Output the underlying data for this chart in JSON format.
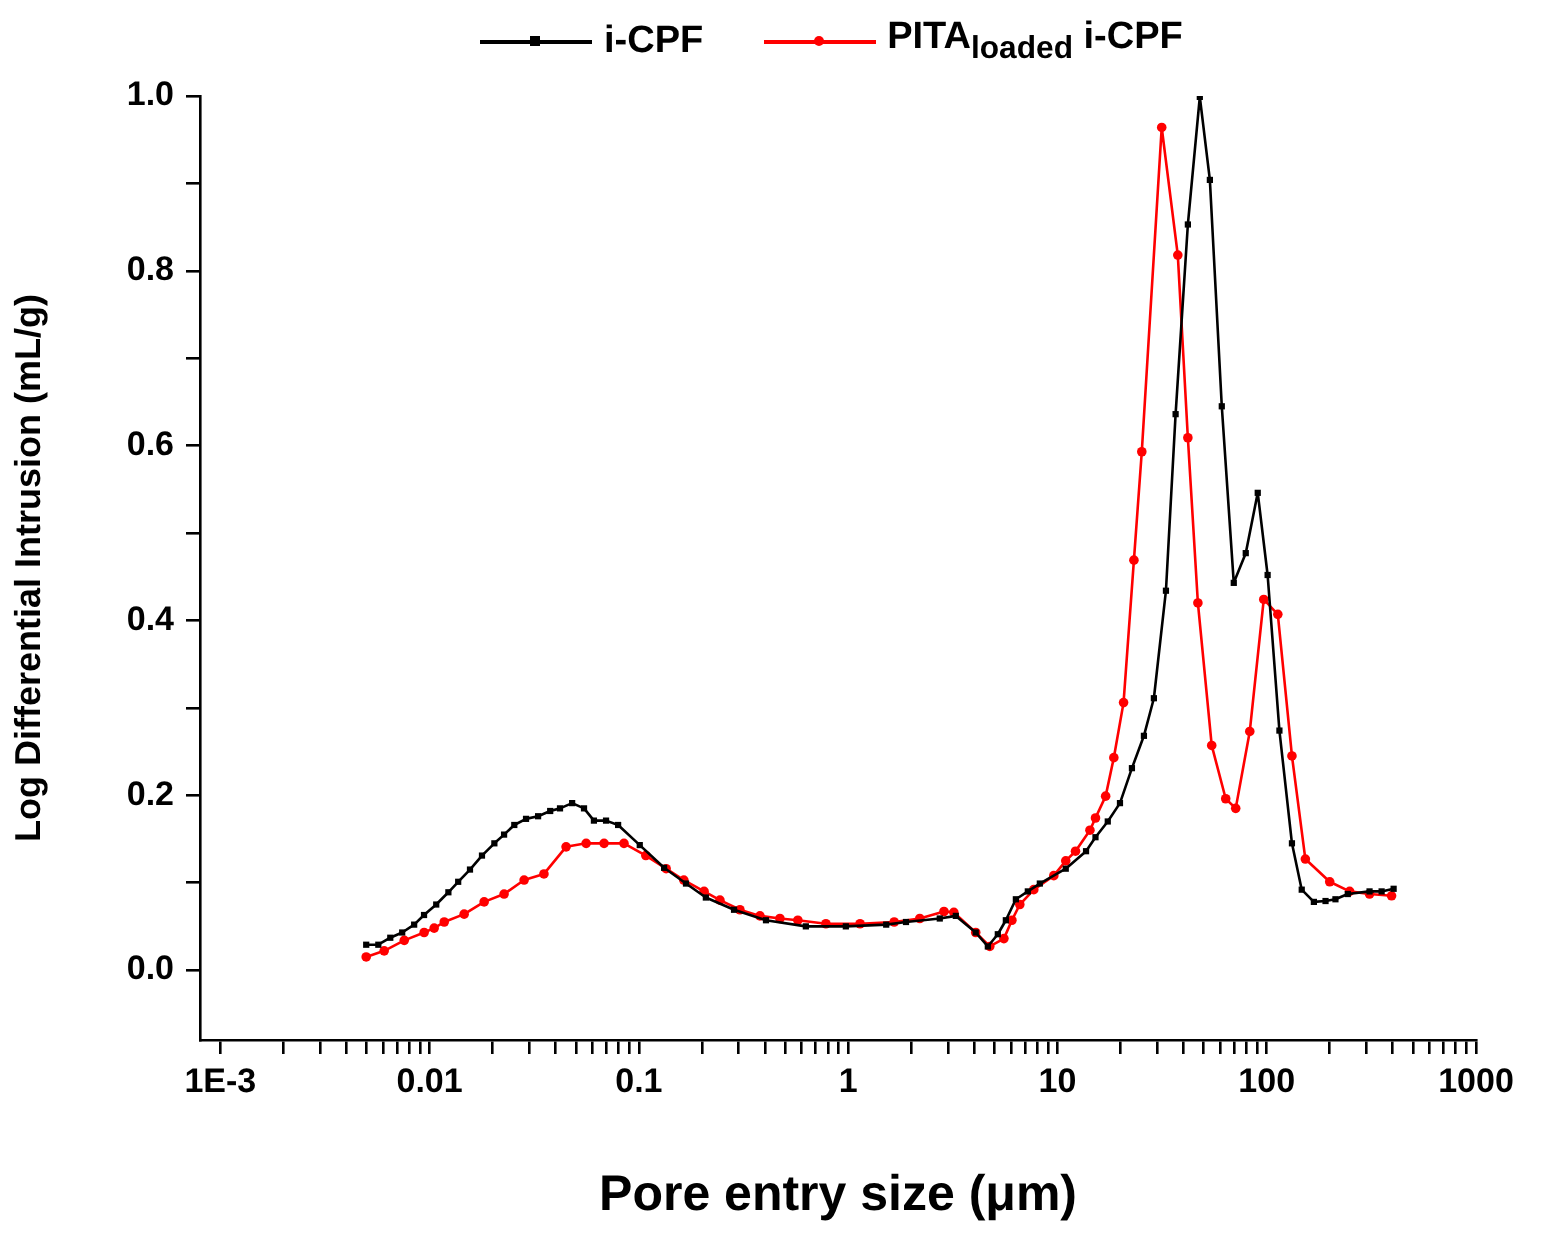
{
  "chart_data": {
    "type": "line",
    "xlabel": "Pore entry size (μm)",
    "ylabel": "Log Differential Intrusion (mL/g)",
    "log": "x",
    "legend": "top",
    "line_style": "solid",
    "xlim": [
      0.0008,
      1000
    ],
    "ylim": [
      -0.08,
      1.0
    ],
    "xticks": [
      {
        "value": 0.001,
        "label": "1E-3"
      },
      {
        "value": 0.002,
        "label": null
      },
      {
        "value": 0.003,
        "label": null
      },
      {
        "value": 0.004,
        "label": null
      },
      {
        "value": 0.005,
        "label": null
      },
      {
        "value": 0.006,
        "label": null
      },
      {
        "value": 0.007,
        "label": null
      },
      {
        "value": 0.008,
        "label": null
      },
      {
        "value": 0.009,
        "label": null
      },
      0.01,
      {
        "value": 0.02,
        "label": null
      },
      {
        "value": 0.03,
        "label": null
      },
      {
        "value": 0.04,
        "label": null
      },
      {
        "value": 0.05,
        "label": null
      },
      {
        "value": 0.06,
        "label": null
      },
      {
        "value": 0.07,
        "label": null
      },
      {
        "value": 0.08,
        "label": null
      },
      {
        "value": 0.09,
        "label": null
      },
      0.1,
      {
        "value": 0.2,
        "label": null
      },
      {
        "value": 0.3,
        "label": null
      },
      {
        "value": 0.4,
        "label": null
      },
      {
        "value": 0.5,
        "label": null
      },
      {
        "value": 0.6,
        "label": null
      },
      {
        "value": 0.7,
        "label": null
      },
      {
        "value": 0.8,
        "label": null
      },
      {
        "value": 0.9,
        "label": null
      },
      1,
      {
        "value": 2,
        "label": null
      },
      {
        "value": 3,
        "label": null
      },
      {
        "value": 4,
        "label": null
      },
      {
        "value": 5,
        "label": null
      },
      {
        "value": 6,
        "label": null
      },
      {
        "value": 7,
        "label": null
      },
      {
        "value": 8,
        "label": null
      },
      {
        "value": 9,
        "label": null
      },
      10,
      {
        "value": 20,
        "label": null
      },
      {
        "value": 30,
        "label": null
      },
      {
        "value": 40,
        "label": null
      },
      {
        "value": 50,
        "label": null
      },
      {
        "value": 60,
        "label": null
      },
      {
        "value": 70,
        "label": null
      },
      {
        "value": 80,
        "label": null
      },
      {
        "value": 90,
        "label": null
      },
      100,
      {
        "value": 200,
        "label": null
      },
      {
        "value": 300,
        "label": null
      },
      {
        "value": 400,
        "label": null
      },
      {
        "value": 500,
        "label": null
      },
      {
        "value": 600,
        "label": null
      },
      {
        "value": 700,
        "label": null
      },
      {
        "value": 800,
        "label": null
      },
      {
        "value": 900,
        "label": null
      },
      1000
    ],
    "yticks": [
      {
        "value": 0,
        "label": "0.0"
      },
      {
        "value": 0.1,
        "label": null
      },
      0.2,
      {
        "value": 0.3,
        "label": null
      },
      0.4,
      {
        "value": 0.5,
        "label": null
      },
      0.6,
      {
        "value": 0.7,
        "label": null
      },
      0.8,
      {
        "value": 0.9,
        "label": null
      },
      {
        "value": 1,
        "label": "1.0"
      }
    ],
    "series": [
      {
        "name": "i-CPF",
        "color": "#000000",
        "marker": "square",
        "x": [
          0.00498,
          0.00569,
          0.00649,
          0.0074,
          0.00844,
          0.00941,
          0.01076,
          0.0123,
          0.0137,
          0.0156,
          0.0178,
          0.0204,
          0.0227,
          0.0254,
          0.0289,
          0.033,
          0.0377,
          0.042,
          0.048,
          0.0547,
          0.061,
          0.0697,
          0.0796,
          0.101,
          0.132,
          0.168,
          0.209,
          0.285,
          0.405,
          0.628,
          0.975,
          1.52,
          1.89,
          2.74,
          3.27,
          4.07,
          4.65,
          5.19,
          5.67,
          6.33,
          7.22,
          8.24,
          10.96,
          13.7,
          15.2,
          17.4,
          19.9,
          22.7,
          25.9,
          28.9,
          33.0,
          36.7,
          42.0,
          47.9,
          53.5,
          61.0,
          69.6,
          79.4,
          90.6,
          101,
          115,
          132,
          147,
          168,
          191,
          213,
          244,
          310,
          354,
          404
        ],
        "values": [
          0.029,
          0.029,
          0.037,
          0.043,
          0.052,
          0.063,
          0.075,
          0.089,
          0.101,
          0.115,
          0.131,
          0.145,
          0.155,
          0.166,
          0.173,
          0.176,
          0.182,
          0.185,
          0.191,
          0.185,
          0.171,
          0.171,
          0.166,
          0.143,
          0.117,
          0.099,
          0.083,
          0.069,
          0.057,
          0.05,
          0.05,
          0.052,
          0.055,
          0.059,
          0.062,
          0.043,
          0.027,
          0.041,
          0.057,
          0.081,
          0.09,
          0.099,
          0.116,
          0.136,
          0.152,
          0.17,
          0.191,
          0.231,
          0.268,
          0.311,
          0.434,
          0.636,
          0.853,
          0.999,
          0.904,
          0.645,
          0.443,
          0.477,
          0.546,
          0.452,
          0.274,
          0.145,
          0.092,
          0.078,
          0.079,
          0.081,
          0.087,
          0.09,
          0.09,
          0.093
        ]
      },
      {
        "name": "PITA$_{loaded}$ i-CPF",
        "color": "#ff0000",
        "marker": "circle",
        "x": [
          0.00498,
          0.00607,
          0.00757,
          0.00942,
          0.01052,
          0.01175,
          0.01463,
          0.01823,
          0.0227,
          0.0283,
          0.0352,
          0.0449,
          0.056,
          0.0682,
          0.0849,
          0.108,
          0.135,
          0.164,
          0.205,
          0.244,
          0.304,
          0.379,
          0.472,
          0.575,
          0.783,
          1.14,
          1.66,
          2.2,
          2.87,
          3.2,
          4.07,
          4.75,
          5.55,
          6.06,
          6.61,
          7.71,
          9.61,
          10.96,
          12.2,
          14.3,
          15.2,
          17.0,
          18.6,
          20.7,
          23.2,
          25.3,
          31.5,
          37.6,
          42.0,
          46.9,
          54.6,
          63.7,
          71.1,
          83.0,
          96.8,
          113,
          132,
          153,
          200,
          249,
          310,
          395
        ],
        "values": [
          0.015,
          0.022,
          0.034,
          0.043,
          0.048,
          0.055,
          0.064,
          0.078,
          0.087,
          0.103,
          0.11,
          0.141,
          0.145,
          0.145,
          0.145,
          0.131,
          0.116,
          0.103,
          0.09,
          0.08,
          0.069,
          0.062,
          0.059,
          0.057,
          0.053,
          0.053,
          0.055,
          0.059,
          0.067,
          0.066,
          0.043,
          0.027,
          0.036,
          0.057,
          0.075,
          0.092,
          0.108,
          0.125,
          0.136,
          0.16,
          0.174,
          0.199,
          0.243,
          0.306,
          0.469,
          0.593,
          0.964,
          0.818,
          0.609,
          0.42,
          0.257,
          0.196,
          0.185,
          0.273,
          0.424,
          0.407,
          0.245,
          0.127,
          0.101,
          0.09,
          0.087,
          0.085
        ]
      }
    ]
  }
}
